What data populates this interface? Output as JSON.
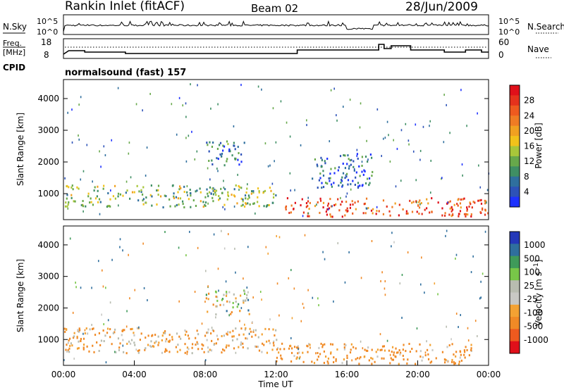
{
  "header": {
    "station": "Rankin Inlet (fitACF)",
    "beam": "Beam 02",
    "date": "28/Jun/2009"
  },
  "noise_panel": {
    "left_label": "N.Sky",
    "left_ticks": [
      "10^5",
      "10^0"
    ],
    "right_label": "N.Search",
    "right_ticks": [
      "10^5",
      "10^0"
    ]
  },
  "freq_panel": {
    "left_label_1": "Freq.",
    "left_label_2": "[MHz]",
    "left_ticks": [
      "18",
      "8"
    ],
    "right_label": "Nave",
    "right_ticks": [
      "60",
      "0"
    ],
    "cpid_label": "CPID",
    "cpid_text": "normalsound (fast) 157"
  },
  "colors": {
    "power_scale": [
      "#1e32ff",
      "#2d52b8",
      "#2f6f9e",
      "#3f8f64",
      "#67a84b",
      "#a8c63a",
      "#f1c21b",
      "#f0a121",
      "#ef7c24",
      "#ee5a1f",
      "#e5321c",
      "#e0101a"
    ],
    "velocity_scale": [
      "#e0101a",
      "#ee5a1f",
      "#f08a26",
      "#f3a233",
      "#c8c8c4",
      "#b8bcb0",
      "#78c648",
      "#3f9a5a",
      "#2f6f9e",
      "#2438b8"
    ],
    "noise_line": "#000000"
  },
  "chart_data": [
    {
      "type": "heatmap",
      "panel": "power",
      "ylabel": "Slant Range [km]",
      "xlabel": "",
      "xlim": [
        "00:00",
        "24:00"
      ],
      "ylim": [
        180,
        4600
      ],
      "yticks": [
        "4000",
        "3000",
        "2000",
        "1000"
      ],
      "colorbar": {
        "label": "Power [dB]",
        "ticks": [
          "28",
          "24",
          "20",
          "16",
          "12",
          "8",
          "4"
        ],
        "range": [
          0,
          30
        ]
      },
      "features": [
        {
          "hours": [
            0,
            12
          ],
          "range_km": [
            600,
            1300
          ],
          "value_db": 12,
          "note": "patchy green/orange band"
        },
        {
          "hours": [
            12.5,
            24
          ],
          "range_km": [
            300,
            900
          ],
          "value_db": 25,
          "note": "strong red scatter"
        },
        {
          "hours": [
            8,
            10.2
          ],
          "range_km": [
            1900,
            2700
          ],
          "value_db": 6,
          "note": "blue arc"
        },
        {
          "hours": [
            14,
            17.5
          ],
          "range_km": [
            1200,
            2300
          ],
          "value_db": 5,
          "note": "blue arc"
        }
      ]
    },
    {
      "type": "heatmap",
      "panel": "velocity",
      "ylabel": "Slant Range [km]",
      "xlabel": "Time UT",
      "xlim": [
        "00:00",
        "24:00"
      ],
      "ylim": [
        180,
        4600
      ],
      "yticks": [
        "4000",
        "3000",
        "2000",
        "1000"
      ],
      "xticks": [
        "00:00",
        "04:00",
        "08:00",
        "12:00",
        "16:00",
        "20:00",
        "00:00"
      ],
      "colorbar": {
        "label": "Velocity [m s^-1]",
        "ticks": [
          "1000",
          "500",
          "100",
          "25",
          "-25",
          "-100",
          "-500",
          "-1000"
        ]
      },
      "features": [
        {
          "hours": [
            0,
            12
          ],
          "range_km": [
            600,
            1400
          ],
          "value_ms": -100
        },
        {
          "hours": [
            12,
            23
          ],
          "range_km": [
            250,
            900
          ],
          "value_ms": -150
        },
        {
          "hours": [
            8,
            10.5
          ],
          "range_km": [
            1800,
            2600
          ],
          "value_ms": 0
        }
      ]
    }
  ]
}
